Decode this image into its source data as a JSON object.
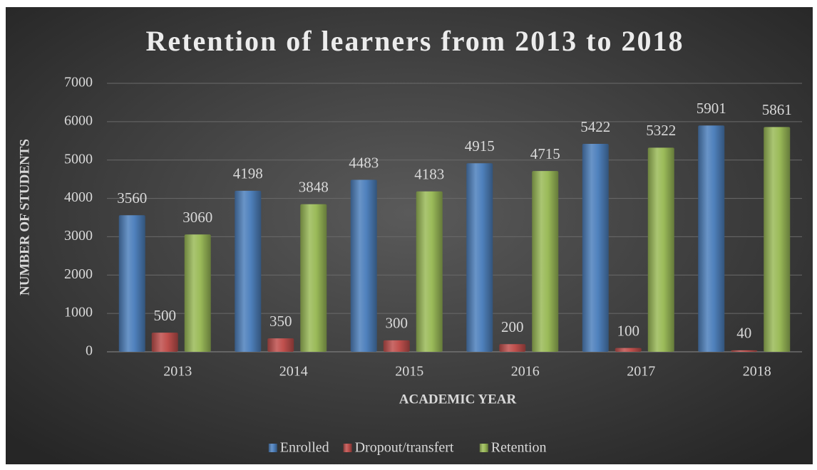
{
  "chart_data": {
    "type": "bar",
    "title": "Retention of learners from 2013 to 2018",
    "x_label": "ACADEMIC YEAR",
    "y_label": "NUMBER OF STUDENTS",
    "categories": [
      "2013",
      "2014",
      "2015",
      "2016",
      "2017",
      "2018"
    ],
    "series": [
      {
        "name": "Enrolled",
        "color": "#4f81bd",
        "values": [
          3560,
          4198,
          4483,
          4915,
          5422,
          5901
        ]
      },
      {
        "name": "Dropout/transfert",
        "color": "#c0504d",
        "values": [
          500,
          350,
          300,
          200,
          100,
          40
        ]
      },
      {
        "name": "Retention",
        "color": "#9bbb59",
        "values": [
          3060,
          3848,
          4183,
          4715,
          5322,
          5861
        ]
      }
    ],
    "ylim": [
      0,
      7000
    ],
    "yticks": [
      0,
      1000,
      2000,
      3000,
      4000,
      5000,
      6000,
      7000
    ],
    "grid": true,
    "legend": "bottom"
  }
}
